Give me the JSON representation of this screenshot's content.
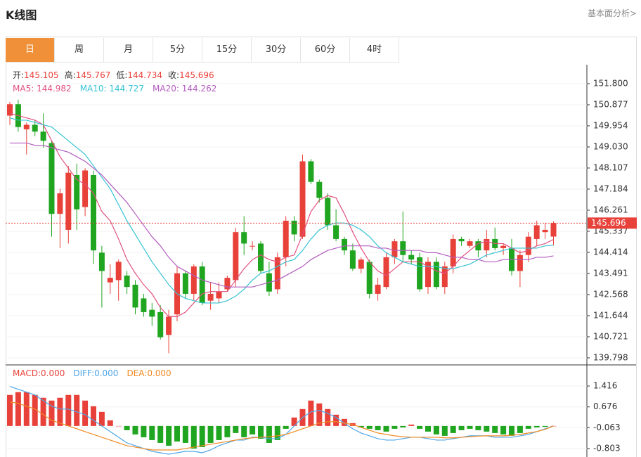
{
  "header": {
    "title": "K线图",
    "link": "基本面分析>"
  },
  "tabs": [
    "日",
    "周",
    "月",
    "5分",
    "15分",
    "30分",
    "60分",
    "4时"
  ],
  "active_tab": 0,
  "chart_data": {
    "type": "candlestick",
    "up_color": "#e8413a",
    "down_color": "#1fa51f",
    "ohlc_labels": [
      "开:",
      "高:",
      "低:",
      "收:"
    ],
    "candles": [
      [
        150.4,
        151.0,
        150.0,
        150.9
      ],
      [
        150.9,
        151.1,
        149.7,
        149.9
      ],
      [
        149.8,
        150.1,
        148.7,
        150.0
      ],
      [
        150.0,
        150.2,
        149.5,
        149.7
      ],
      [
        149.7,
        150.5,
        149.0,
        149.3
      ],
      [
        149.2,
        149.3,
        145.1,
        146.1
      ],
      [
        146.1,
        147.2,
        144.6,
        147.0
      ],
      [
        145.4,
        148.2,
        144.8,
        147.9
      ],
      [
        147.8,
        148.3,
        145.4,
        146.3
      ],
      [
        146.4,
        148.1,
        146.0,
        148.0
      ],
      [
        147.8,
        148.0,
        143.9,
        144.5
      ],
      [
        144.4,
        144.7,
        142.0,
        143.6
      ],
      [
        143.1,
        143.9,
        142.6,
        143.3
      ],
      [
        143.2,
        144.1,
        142.3,
        144.0
      ],
      [
        143.4,
        143.6,
        142.6,
        142.9
      ],
      [
        143.0,
        143.2,
        141.7,
        142.0
      ],
      [
        142.4,
        142.6,
        141.6,
        141.8
      ],
      [
        141.9,
        142.2,
        141.2,
        141.6
      ],
      [
        141.8,
        142.1,
        140.6,
        140.7
      ],
      [
        140.8,
        141.9,
        140.0,
        141.6
      ],
      [
        141.7,
        143.8,
        141.4,
        143.5
      ],
      [
        143.5,
        143.6,
        142.4,
        142.6
      ],
      [
        142.6,
        143.9,
        142.3,
        143.8
      ],
      [
        143.8,
        144.0,
        142.1,
        142.2
      ],
      [
        142.3,
        143.1,
        141.9,
        142.6
      ],
      [
        142.4,
        143.1,
        142.2,
        142.7
      ],
      [
        142.8,
        143.4,
        142.7,
        143.3
      ],
      [
        143.2,
        145.5,
        142.9,
        145.3
      ],
      [
        145.3,
        146.0,
        144.3,
        144.8
      ],
      [
        144.7,
        144.9,
        144.5,
        144.7
      ],
      [
        144.8,
        144.9,
        143.5,
        143.6
      ],
      [
        143.5,
        144.0,
        142.5,
        142.7
      ],
      [
        142.8,
        144.4,
        142.6,
        144.2
      ],
      [
        144.2,
        146.0,
        143.8,
        145.8
      ],
      [
        145.8,
        146.0,
        144.9,
        145.2
      ],
      [
        145.1,
        148.7,
        145.0,
        148.4
      ],
      [
        148.4,
        148.5,
        147.4,
        147.5
      ],
      [
        147.5,
        147.6,
        146.6,
        146.8
      ],
      [
        146.8,
        147.0,
        145.4,
        145.6
      ],
      [
        145.6,
        146.3,
        144.9,
        145.0
      ],
      [
        145.0,
        145.1,
        144.3,
        144.5
      ],
      [
        144.5,
        144.8,
        143.6,
        143.7
      ],
      [
        143.7,
        144.2,
        143.5,
        144.1
      ],
      [
        144.0,
        144.1,
        142.4,
        142.6
      ],
      [
        142.6,
        143.3,
        142.3,
        143.0
      ],
      [
        142.9,
        144.4,
        142.8,
        144.2
      ],
      [
        144.2,
        145.0,
        143.9,
        144.9
      ],
      [
        144.9,
        146.2,
        144.0,
        144.3
      ],
      [
        144.3,
        144.5,
        143.9,
        144.1
      ],
      [
        144.2,
        144.4,
        142.7,
        142.8
      ],
      [
        142.9,
        144.2,
        142.6,
        144.0
      ],
      [
        144.0,
        144.2,
        142.8,
        142.9
      ],
      [
        142.9,
        144.0,
        142.6,
        143.8
      ],
      [
        143.8,
        145.2,
        143.5,
        145.0
      ],
      [
        145.0,
        145.1,
        144.7,
        144.9
      ],
      [
        144.7,
        145.0,
        144.6,
        144.9
      ],
      [
        144.9,
        145.0,
        144.2,
        144.5
      ],
      [
        144.5,
        145.4,
        144.2,
        145.0
      ],
      [
        145.0,
        145.5,
        144.5,
        144.6
      ],
      [
        144.6,
        144.8,
        144.3,
        144.7
      ],
      [
        144.6,
        145.0,
        143.4,
        143.6
      ],
      [
        143.6,
        144.5,
        142.9,
        144.3
      ],
      [
        144.3,
        145.3,
        144.0,
        145.1
      ],
      [
        145.0,
        145.8,
        144.7,
        145.6
      ],
      [
        145.3,
        145.7,
        145.0,
        145.4
      ],
      [
        145.105,
        145.767,
        144.734,
        145.696
      ]
    ],
    "series": [
      {
        "name": "MA5",
        "legend": "MA5: ",
        "color": "#e2507f",
        "values": [
          150.5,
          150.4,
          150.3,
          150.2,
          150.0,
          149.3,
          148.6,
          148.1,
          147.6,
          147.4,
          147.0,
          146.2,
          145.8,
          145.0,
          144.1,
          143.5,
          143.0,
          142.6,
          142.0,
          141.6,
          141.6,
          141.8,
          142.2,
          142.6,
          142.7,
          142.7,
          142.7,
          143.2,
          143.7,
          144.1,
          144.3,
          144.1,
          144.0,
          144.2,
          144.3,
          145.2,
          146.2,
          146.7,
          146.9,
          146.8,
          146.1,
          145.3,
          144.6,
          144.0,
          143.6,
          143.4,
          143.7,
          144.0,
          144.0,
          144.0,
          143.8,
          143.6,
          143.5,
          143.8,
          144.2,
          144.5,
          144.8,
          144.9,
          144.8,
          144.8,
          144.6,
          144.4,
          144.5,
          144.7,
          144.8,
          144.982
        ]
      },
      {
        "name": "MA10",
        "legend": "MA10: ",
        "color": "#35c3d3",
        "values": [
          150.3,
          150.2,
          150.2,
          150.1,
          150.0,
          149.9,
          149.6,
          149.3,
          149.0,
          148.7,
          148.2,
          147.7,
          147.2,
          146.5,
          145.8,
          145.2,
          144.6,
          144.0,
          143.5,
          143.0,
          142.6,
          142.4,
          142.3,
          142.2,
          142.2,
          142.2,
          142.3,
          142.5,
          142.8,
          143.2,
          143.5,
          143.6,
          143.8,
          144.0,
          144.1,
          144.5,
          145.0,
          145.4,
          145.6,
          145.7,
          145.7,
          145.6,
          145.4,
          145.1,
          144.7,
          144.4,
          144.2,
          144.0,
          143.9,
          143.8,
          143.8,
          143.8,
          143.7,
          143.7,
          143.8,
          143.9,
          144.1,
          144.3,
          144.4,
          144.5,
          144.6,
          144.6,
          144.6,
          144.6,
          144.7,
          144.727
        ]
      },
      {
        "name": "MA20",
        "legend": "MA20: ",
        "color": "#b35cbf",
        "values": [
          149.2,
          149.2,
          149.2,
          149.1,
          149.1,
          149.0,
          148.9,
          148.8,
          148.6,
          148.4,
          148.1,
          147.8,
          147.4,
          147.0,
          146.6,
          146.1,
          145.6,
          145.1,
          144.7,
          144.2,
          143.8,
          143.6,
          143.4,
          143.2,
          143.1,
          143.0,
          142.9,
          142.9,
          142.9,
          142.9,
          143.0,
          143.1,
          143.2,
          143.4,
          143.6,
          143.8,
          144.1,
          144.3,
          144.5,
          144.6,
          144.7,
          144.7,
          144.7,
          144.7,
          144.6,
          144.6,
          144.5,
          144.5,
          144.5,
          144.5,
          144.4,
          144.4,
          144.3,
          144.2,
          144.2,
          144.1,
          144.1,
          144.0,
          144.0,
          144.1,
          144.1,
          144.1,
          144.1,
          144.2,
          144.2,
          144.262
        ]
      }
    ],
    "ylim": [
      139.52,
      152.63
    ],
    "yticks": [
      {
        "value": 151.8,
        "label": "151.800"
      },
      150.877,
      149.954,
      {
        "value": 149.03,
        "label": "149.030"
      },
      148.107,
      147.184,
      146.261,
      145.337,
      144.414,
      143.491,
      142.568,
      141.644,
      140.721,
      139.798
    ],
    "grid": true,
    "macd": {
      "ylim": [
        -1.1,
        2.14
      ],
      "yticks": [
        1.416,
        0.676,
        -0.063,
        -0.803
      ],
      "series": [
        {
          "name": "MACD",
          "legend": "MACD:",
          "legend_value": "0.000",
          "color": "#e8413a",
          "down_color": "#1fa51f",
          "values": [
            1.1,
            1.2,
            1.2,
            1.1,
            1.0,
            0.9,
            1.0,
            1.1,
            1.1,
            0.9,
            0.7,
            0.5,
            0.2,
            0.0,
            -0.15,
            -0.3,
            -0.4,
            -0.5,
            -0.6,
            -0.7,
            -0.55,
            -0.6,
            -0.8,
            -0.75,
            -0.6,
            -0.5,
            -0.4,
            -0.25,
            -0.4,
            -0.3,
            -0.45,
            -0.6,
            -0.5,
            -0.1,
            0.3,
            0.6,
            0.9,
            0.8,
            0.6,
            0.4,
            0.25,
            0.1,
            -0.05,
            -0.1,
            -0.15,
            -0.2,
            -0.1,
            -0.05,
            0.05,
            -0.1,
            -0.2,
            -0.3,
            -0.35,
            -0.25,
            -0.15,
            -0.1,
            -0.15,
            -0.2,
            -0.25,
            -0.3,
            -0.35,
            -0.25,
            -0.1,
            -0.05,
            -0.03,
            0.0
          ]
        },
        {
          "name": "DIFF",
          "legend": "DIFF:",
          "legend_value": "0.000",
          "color": "#4da6e8",
          "values": [
            1.4,
            1.3,
            1.2,
            1.1,
            0.9,
            0.7,
            0.6,
            0.6,
            0.5,
            0.4,
            0.2,
            0.0,
            -0.2,
            -0.4,
            -0.6,
            -0.7,
            -0.8,
            -0.9,
            -0.95,
            -1.0,
            -0.95,
            -0.9,
            -0.9,
            -0.95,
            -0.85,
            -0.7,
            -0.6,
            -0.5,
            -0.5,
            -0.4,
            -0.4,
            -0.45,
            -0.45,
            -0.3,
            0.0,
            0.3,
            0.5,
            0.55,
            0.45,
            0.3,
            0.1,
            -0.1,
            -0.25,
            -0.35,
            -0.45,
            -0.5,
            -0.5,
            -0.45,
            -0.4,
            -0.4,
            -0.45,
            -0.5,
            -0.5,
            -0.45,
            -0.4,
            -0.35,
            -0.35,
            -0.35,
            -0.4,
            -0.4,
            -0.4,
            -0.35,
            -0.3,
            -0.2,
            -0.1,
            0.0
          ]
        },
        {
          "name": "DEA",
          "legend": "DEA:",
          "legend_value": "0.000",
          "color": "#f08a24",
          "values": [
            0.85,
            0.8,
            0.7,
            0.6,
            0.4,
            0.2,
            0.1,
            0.0,
            -0.1,
            -0.2,
            -0.3,
            -0.4,
            -0.5,
            -0.6,
            -0.7,
            -0.75,
            -0.8,
            -0.85,
            -0.85,
            -0.85,
            -0.85,
            -0.8,
            -0.75,
            -0.7,
            -0.65,
            -0.6,
            -0.55,
            -0.5,
            -0.45,
            -0.42,
            -0.4,
            -0.38,
            -0.35,
            -0.3,
            -0.2,
            -0.1,
            0.0,
            0.1,
            0.15,
            0.15,
            0.1,
            0.05,
            -0.05,
            -0.15,
            -0.25,
            -0.3,
            -0.35,
            -0.38,
            -0.4,
            -0.4,
            -0.4,
            -0.4,
            -0.42,
            -0.42,
            -0.4,
            -0.38,
            -0.36,
            -0.35,
            -0.35,
            -0.35,
            -0.33,
            -0.3,
            -0.25,
            -0.2,
            -0.12,
            0.0
          ]
        }
      ]
    }
  }
}
